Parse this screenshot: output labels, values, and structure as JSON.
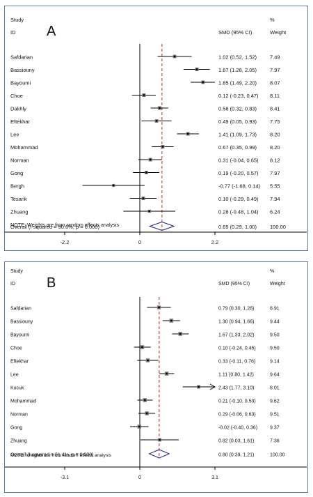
{
  "chart_data": [
    {
      "type": "forest",
      "panel_label": "A",
      "header": {
        "study": "Study",
        "id": "ID",
        "smd": "SMD (95% CI)",
        "pct": "%",
        "weight": "Weight"
      },
      "studies": [
        {
          "name": "Safdarian",
          "smd": 1.02,
          "lo": 0.52,
          "hi": 1.52,
          "ci_text": "1.02 (0.52, 1.52)",
          "weight": "7.49"
        },
        {
          "name": "Bassiouny",
          "smd": 1.67,
          "lo": 1.28,
          "hi": 2.05,
          "ci_text": "1.67 (1.28, 2.05)",
          "weight": "7.97"
        },
        {
          "name": "Bayoumi",
          "smd": 1.85,
          "lo": 1.49,
          "hi": 2.2,
          "ci_text": "1.85 (1.49, 2.20)",
          "weight": "8.07"
        },
        {
          "name": "Choe",
          "smd": 0.12,
          "lo": -0.23,
          "hi": 0.47,
          "ci_text": "0.12 (-0.23, 0.47)",
          "weight": "8.11"
        },
        {
          "name": "Dakhly",
          "smd": 0.58,
          "lo": 0.32,
          "hi": 0.83,
          "ci_text": "0.58 (0.32, 0.83)",
          "weight": "8.41"
        },
        {
          "name": "Eftekhar",
          "smd": 0.49,
          "lo": 0.05,
          "hi": 0.93,
          "ci_text": "0.49 (0.05, 0.93)",
          "weight": "7.75"
        },
        {
          "name": "Lee",
          "smd": 1.41,
          "lo": 1.09,
          "hi": 1.73,
          "ci_text": "1.41 (1.09, 1.73)",
          "weight": "8.20"
        },
        {
          "name": "Mohammad",
          "smd": 0.67,
          "lo": 0.35,
          "hi": 0.99,
          "ci_text": "0.67 (0.35, 0.99)",
          "weight": "8.20"
        },
        {
          "name": "Norman",
          "smd": 0.31,
          "lo": -0.04,
          "hi": 0.65,
          "ci_text": "0.31 (-0.04, 0.65)",
          "weight": "8.12"
        },
        {
          "name": "Gong",
          "smd": 0.19,
          "lo": -0.2,
          "hi": 0.57,
          "ci_text": "0.19 (-0.20, 0.57)",
          "weight": "7.97"
        },
        {
          "name": "Bergh",
          "smd": -0.77,
          "lo": -1.68,
          "hi": 0.14,
          "ci_text": "-0.77 (-1.68, 0.14)",
          "weight": "5.55"
        },
        {
          "name": "Tesarik",
          "smd": 0.1,
          "lo": -0.29,
          "hi": 0.49,
          "ci_text": "0.10 (-0.29, 0.49)",
          "weight": "7.94"
        },
        {
          "name": "Zhuang",
          "smd": 0.28,
          "lo": -0.48,
          "hi": 1.04,
          "ci_text": "0.28 (-0.48, 1.04)",
          "weight": "6.24"
        }
      ],
      "overall": {
        "label": "Overall  (I-squared = 90.6%, p = 0.000)",
        "smd": 0.65,
        "lo": 0.29,
        "hi": 1.0,
        "ci_text": "0.65 (0.29, 1.00)",
        "weight": "100.00"
      },
      "note": "NOTE: Weights are from random effects analysis",
      "xlim": [
        -2.2,
        2.2
      ],
      "ticks": [
        -2.2,
        0,
        2.2
      ],
      "tick_labels": [
        "-2.2",
        "0",
        "2.2"
      ]
    },
    {
      "type": "forest",
      "panel_label": "B",
      "header": {
        "study": "Study",
        "id": "ID",
        "smd": "SMD (95% CI)",
        "pct": "%",
        "weight": "Weight"
      },
      "studies": [
        {
          "name": "Safdarian",
          "smd": 0.79,
          "lo": 0.3,
          "hi": 1.28,
          "ci_text": "0.79 (0.30, 1.28)",
          "weight": "8.91"
        },
        {
          "name": "Bassiouny",
          "smd": 1.3,
          "lo": 0.94,
          "hi": 1.66,
          "ci_text": "1.30 (0.94, 1.66)",
          "weight": "9.44"
        },
        {
          "name": "Bayoumi",
          "smd": 1.67,
          "lo": 1.33,
          "hi": 2.02,
          "ci_text": "1.67 (1.33, 2.02)",
          "weight": "9.50"
        },
        {
          "name": "Choe",
          "smd": 0.1,
          "lo": -0.24,
          "hi": 0.45,
          "ci_text": "0.10 (-0.24, 0.45)",
          "weight": "9.50"
        },
        {
          "name": "Eftekhar",
          "smd": 0.33,
          "lo": -0.11,
          "hi": 0.76,
          "ci_text": "0.33 (-0.11, 0.76)",
          "weight": "9.14"
        },
        {
          "name": "Lee",
          "smd": 1.11,
          "lo": 0.8,
          "hi": 1.42,
          "ci_text": "1.11 (0.80, 1.42)",
          "weight": "9.64"
        },
        {
          "name": "Kucuk",
          "smd": 2.43,
          "lo": 1.77,
          "hi": 3.1,
          "ci_text": "2.43 (1.77, 3.10)",
          "weight": "8.01",
          "arrow_right": true
        },
        {
          "name": "Mohammad",
          "smd": 0.21,
          "lo": -0.1,
          "hi": 0.53,
          "ci_text": "0.21 (-0.10, 0.53)",
          "weight": "9.62"
        },
        {
          "name": "Norman",
          "smd": 0.29,
          "lo": -0.06,
          "hi": 0.63,
          "ci_text": "0.29 (-0.06, 0.63)",
          "weight": "9.51"
        },
        {
          "name": "Gong",
          "smd": -0.02,
          "lo": -0.4,
          "hi": 0.36,
          "ci_text": "-0.02 (-0.40, 0.36)",
          "weight": "9.37"
        },
        {
          "name": "Zhuang",
          "smd": 0.82,
          "lo": 0.03,
          "hi": 1.61,
          "ci_text": "0.82 (0.03, 1.61)",
          "weight": "7.36"
        }
      ],
      "overall": {
        "label": "Overall  (I-squared = 91.4%, p = 0.000)",
        "smd": 0.8,
        "lo": 0.39,
        "hi": 1.21,
        "ci_text": "0.80 (0.39, 1.21)",
        "weight": "100.00"
      },
      "note": "NOTE: Weights are from random effects analysis",
      "xlim": [
        -3.1,
        3.1
      ],
      "ticks": [
        -3.1,
        0,
        3.1
      ],
      "tick_labels": [
        "-3.1",
        "0",
        "3.1"
      ]
    }
  ],
  "colors": {
    "frame": "#5a7fa6",
    "dashed_line": "#c0392b",
    "diamond": "#2c2c8c",
    "ink": "#111111"
  }
}
